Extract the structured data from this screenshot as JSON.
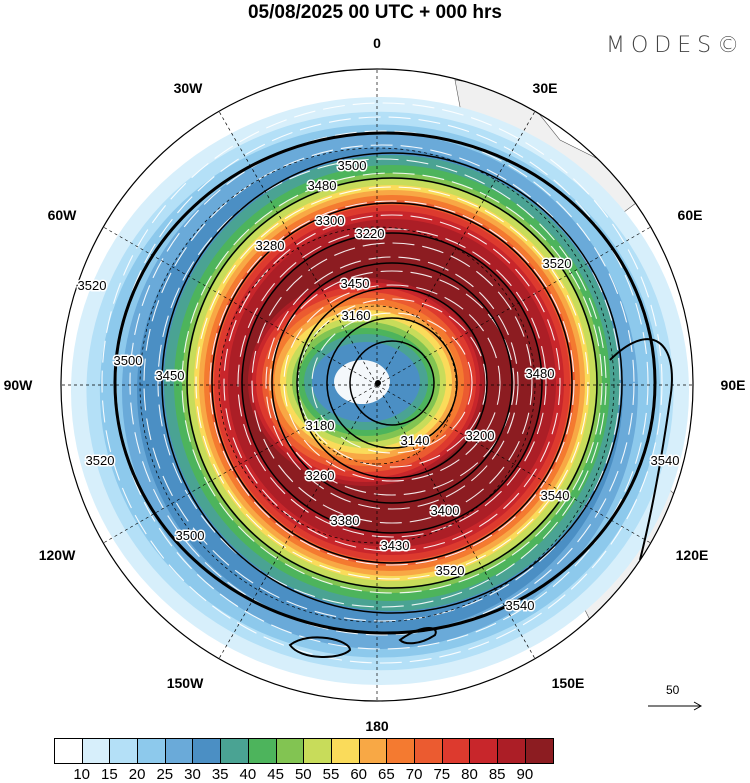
{
  "title": "05/08/2025  00 UTC  + 000 hrs",
  "logo": "MODES©",
  "longitude_labels": [
    "0",
    "30E",
    "60E",
    "90E",
    "120E",
    "150E",
    "180",
    "150W",
    "120W",
    "90W",
    "60W",
    "30W"
  ],
  "contour_labels": [
    "3500",
    "3480",
    "3520",
    "3520",
    "3500",
    "3450",
    "3450",
    "3480",
    "3520",
    "3540",
    "3540",
    "3540",
    "3160",
    "3140",
    "3180",
    "3200",
    "3260",
    "3380",
    "3400",
    "3500",
    "3430",
    "3520",
    "3220",
    "3280",
    "3300"
  ],
  "vector_reference": "50",
  "colorbar": {
    "labels": [
      "10",
      "15",
      "20",
      "25",
      "30",
      "35",
      "40",
      "45",
      "50",
      "55",
      "60",
      "65",
      "70",
      "75",
      "80",
      "85",
      "90"
    ],
    "colors": [
      "#ffffff",
      "#d7effb",
      "#b4e0f7",
      "#8dc9ec",
      "#6aaad9",
      "#4b8fc4",
      "#4aa393",
      "#4db45c",
      "#82c452",
      "#c8dc5a",
      "#fadb5a",
      "#f8a845",
      "#f47a30",
      "#eb5b30",
      "#dd3a2e",
      "#c8262b",
      "#ac1e26",
      "#8c1c21"
    ]
  }
}
